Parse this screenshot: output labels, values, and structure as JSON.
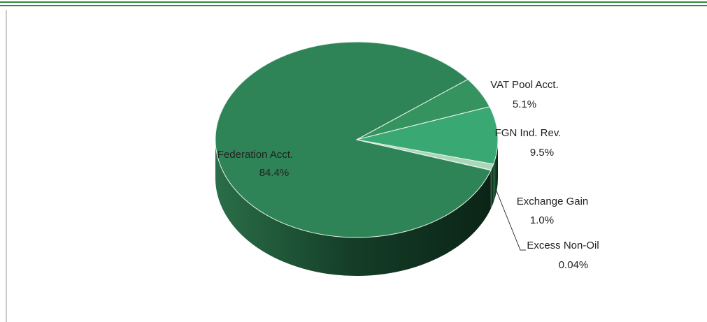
{
  "chart_data": {
    "type": "pie",
    "categories": [
      "Federation Acct.",
      "VAT Pool Acct.",
      "FGN Ind. Rev.",
      "Exchange Gain",
      "Excess Non-Oil"
    ],
    "values": [
      84.4,
      5.1,
      9.5,
      1.0,
      0.04
    ],
    "value_labels": [
      "84.4%",
      "5.1%",
      "9.5%",
      "1.0%",
      "0.04%"
    ],
    "colors": [
      "#2e8456",
      "#35935f",
      "#3aa873",
      "#a9d8b9",
      "#d4ecdc"
    ]
  }
}
